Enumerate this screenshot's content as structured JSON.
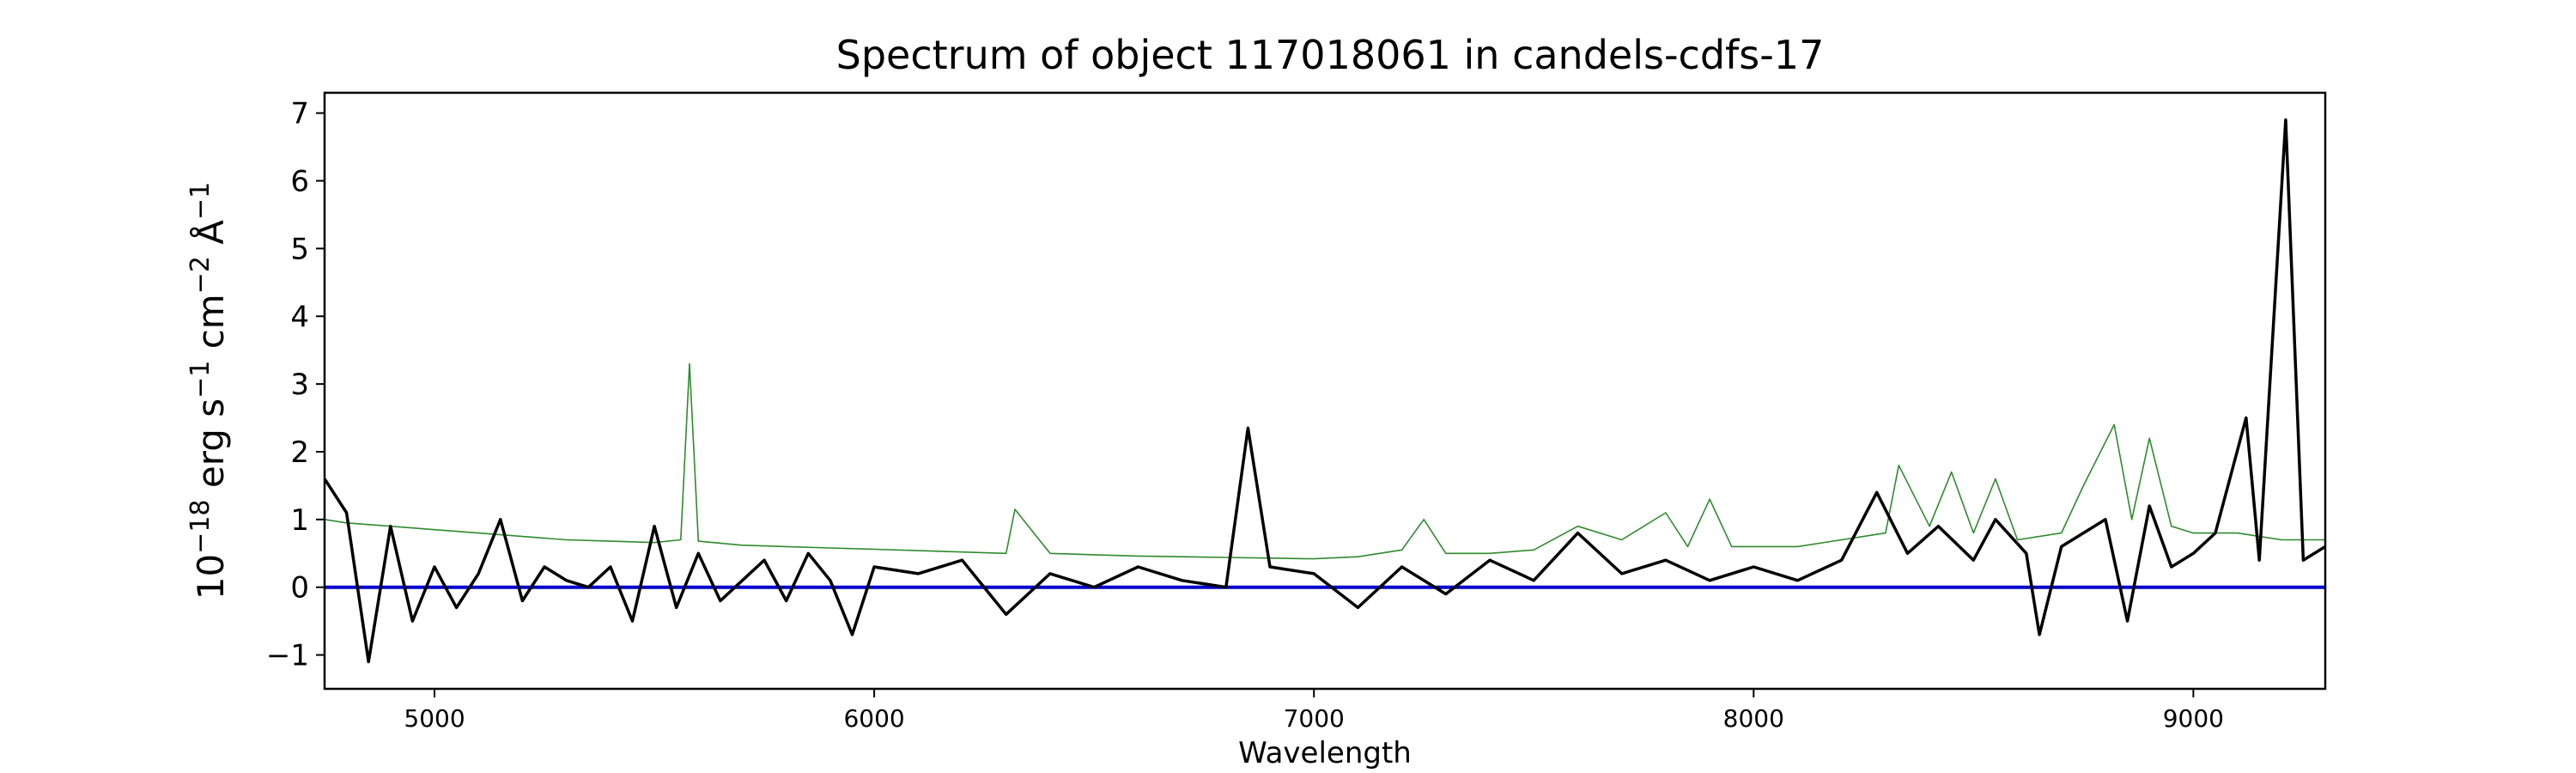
{
  "chart_data": {
    "type": "line",
    "title": "Spectrum of object 117018061 in candels-cdfs-17",
    "xlabel": "Wavelength",
    "ylabel": "10^-18 erg s^-1 cm^-2 Å^-1",
    "xlim": [
      4750,
      9300
    ],
    "ylim": [
      -1.5,
      7.3
    ],
    "xticks": [
      5000,
      6000,
      7000,
      8000,
      9000
    ],
    "yticks": [
      -1,
      0,
      1,
      2,
      3,
      4,
      5,
      6,
      7
    ],
    "grid": false,
    "legend": "none",
    "series": [
      {
        "role": "flux",
        "color": "#000000",
        "x": [
          4750,
          4800,
          4850,
          4900,
          4950,
          5000,
          5050,
          5100,
          5150,
          5200,
          5250,
          5300,
          5350,
          5400,
          5450,
          5500,
          5550,
          5600,
          5650,
          5700,
          5750,
          5800,
          5850,
          5900,
          5950,
          6000,
          6100,
          6200,
          6300,
          6400,
          6500,
          6600,
          6700,
          6800,
          6850,
          6900,
          7000,
          7100,
          7200,
          7300,
          7400,
          7500,
          7600,
          7700,
          7800,
          7900,
          8000,
          8100,
          8200,
          8280,
          8350,
          8420,
          8500,
          8550,
          8620,
          8650,
          8700,
          8800,
          8850,
          8900,
          8950,
          9000,
          9050,
          9120,
          9150,
          9210,
          9250,
          9300
        ],
        "y": [
          1.6,
          1.1,
          -1.1,
          0.9,
          -0.5,
          0.3,
          -0.3,
          0.2,
          1.0,
          -0.2,
          0.3,
          0.1,
          0.0,
          0.3,
          -0.5,
          0.9,
          -0.3,
          0.5,
          -0.2,
          0.1,
          0.4,
          -0.2,
          0.5,
          0.1,
          -0.7,
          0.3,
          0.2,
          0.4,
          -0.4,
          0.2,
          0.0,
          0.3,
          0.1,
          0.0,
          2.35,
          0.3,
          0.2,
          -0.3,
          0.3,
          -0.1,
          0.4,
          0.1,
          0.8,
          0.2,
          0.4,
          0.1,
          0.3,
          0.1,
          0.4,
          1.4,
          0.5,
          0.9,
          0.4,
          1.0,
          0.5,
          -0.7,
          0.6,
          1.0,
          -0.5,
          1.2,
          0.3,
          0.5,
          0.8,
          2.5,
          0.4,
          6.9,
          0.4,
          0.6
        ]
      },
      {
        "role": "model",
        "color": "#2e8b2e",
        "x": [
          4750,
          4800,
          4900,
          5000,
          5100,
          5200,
          5300,
          5400,
          5500,
          5560,
          5580,
          5600,
          5700,
          5800,
          5900,
          6000,
          6100,
          6200,
          6300,
          6320,
          6400,
          6500,
          6600,
          6700,
          6800,
          6900,
          7000,
          7100,
          7200,
          7250,
          7300,
          7400,
          7500,
          7600,
          7700,
          7800,
          7850,
          7900,
          7950,
          8000,
          8100,
          8200,
          8300,
          8330,
          8400,
          8450,
          8500,
          8550,
          8600,
          8700,
          8750,
          8820,
          8860,
          8900,
          8950,
          9000,
          9100,
          9200,
          9300
        ],
        "y": [
          1.0,
          0.95,
          0.9,
          0.85,
          0.8,
          0.75,
          0.7,
          0.68,
          0.66,
          0.7,
          3.3,
          0.68,
          0.62,
          0.6,
          0.58,
          0.56,
          0.54,
          0.52,
          0.5,
          1.15,
          0.5,
          0.48,
          0.46,
          0.45,
          0.44,
          0.43,
          0.42,
          0.45,
          0.55,
          1.0,
          0.5,
          0.5,
          0.55,
          0.9,
          0.7,
          1.1,
          0.6,
          1.3,
          0.6,
          0.6,
          0.6,
          0.7,
          0.8,
          1.8,
          0.9,
          1.7,
          0.8,
          1.6,
          0.7,
          0.8,
          1.5,
          2.4,
          1.0,
          2.2,
          0.9,
          0.8,
          0.8,
          0.7,
          0.7
        ]
      },
      {
        "role": "zero",
        "color": "#0000cc",
        "x": [
          4750,
          9300
        ],
        "y": [
          0,
          0
        ]
      }
    ]
  }
}
